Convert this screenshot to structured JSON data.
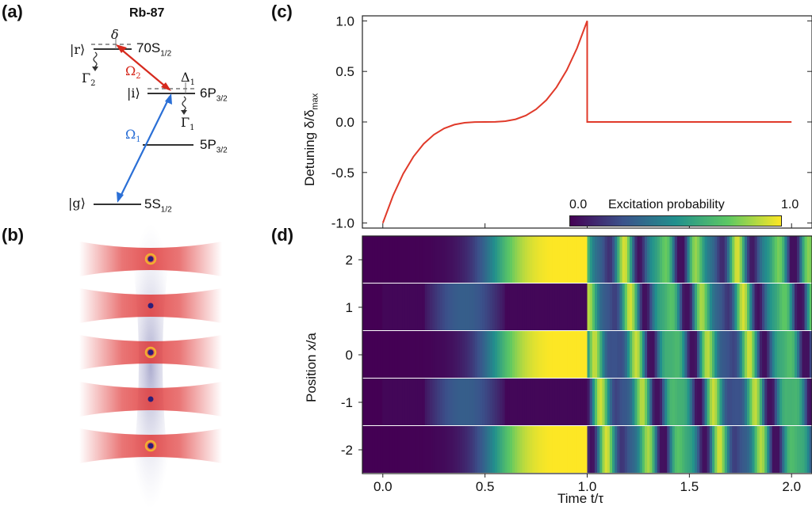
{
  "panels": {
    "a": "(a)",
    "b": "(b)",
    "c": "(c)",
    "d": "(d)"
  },
  "level_diagram": {
    "title": "Rb-87",
    "levels": {
      "rydberg": {
        "name": "70S",
        "sub": "1/2",
        "ket": "|r⟩"
      },
      "intermediate": {
        "name": "6P",
        "sub": "3/2",
        "ket": "|i⟩"
      },
      "d2": {
        "name": "5P",
        "sub": "3/2"
      },
      "ground": {
        "name": "5S",
        "sub": "1/2",
        "ket": "|g⟩"
      }
    },
    "symbols": {
      "delta": "δ",
      "Delta1": "Δ",
      "Delta1_sub": "1",
      "Omega2": "Ω",
      "Omega2_sub": "2",
      "Omega1": "Ω",
      "Omega1_sub": "1",
      "Gamma2": "Γ",
      "Gamma2_sub": "2",
      "Gamma1": "Γ",
      "Gamma1_sub": "1"
    },
    "colors": {
      "omega2": "#d62a1e",
      "omega1": "#2a6fd6"
    }
  },
  "tweezer": {
    "sites": 5,
    "atom_color": "#2b1e78",
    "ring_color": "#f0b030",
    "beam_color": "#e03a3a"
  },
  "chart_data": [
    {
      "id": "c",
      "type": "line",
      "ylabel": "Detuning δ/δ",
      "ylabel_sub": "max",
      "xlim": [
        -0.1,
        2.1
      ],
      "ylim": [
        -1.05,
        1.05
      ],
      "yticks": [
        "1.0",
        "0.5",
        "0.0",
        "-0.5",
        "-1.0"
      ],
      "ytick_values": [
        1.0,
        0.5,
        0.0,
        -0.5,
        -1.0
      ],
      "series": [
        {
          "color": "#e03a2a",
          "x": [
            0.0,
            0.05,
            0.1,
            0.15,
            0.2,
            0.25,
            0.3,
            0.35,
            0.4,
            0.45,
            0.5,
            0.55,
            0.6,
            0.65,
            0.7,
            0.75,
            0.8,
            0.85,
            0.9,
            0.95,
            1.0,
            1.0,
            1.2,
            1.4,
            1.6,
            1.8,
            2.0
          ],
          "y": [
            -1.0,
            -0.729,
            -0.512,
            -0.343,
            -0.216,
            -0.125,
            -0.064,
            -0.027,
            -0.008,
            -0.001,
            0.0,
            0.001,
            0.008,
            0.027,
            0.064,
            0.125,
            0.216,
            0.343,
            0.512,
            0.729,
            1.0,
            0.0,
            0.0,
            0.0,
            0.0,
            0.0,
            0.0
          ]
        }
      ]
    },
    {
      "id": "d",
      "type": "heatmap",
      "xlabel": "Time t/τ",
      "ylabel": "Position x/a",
      "xticks": [
        "0.0",
        "0.5",
        "1.0",
        "1.5",
        "2.0"
      ],
      "xtick_values": [
        0.0,
        0.5,
        1.0,
        1.5,
        2.0
      ],
      "yticks": [
        "2",
        "1",
        "0",
        "-1",
        "-2"
      ],
      "ytick_values": [
        2,
        1,
        0,
        -1,
        -2
      ],
      "xlim": [
        -0.1,
        2.1
      ],
      "rows": [
        2,
        1,
        0,
        -1,
        -2
      ],
      "colorbar": {
        "label": "Excitation probability",
        "min": "0.0",
        "max": "1.0"
      }
    }
  ]
}
